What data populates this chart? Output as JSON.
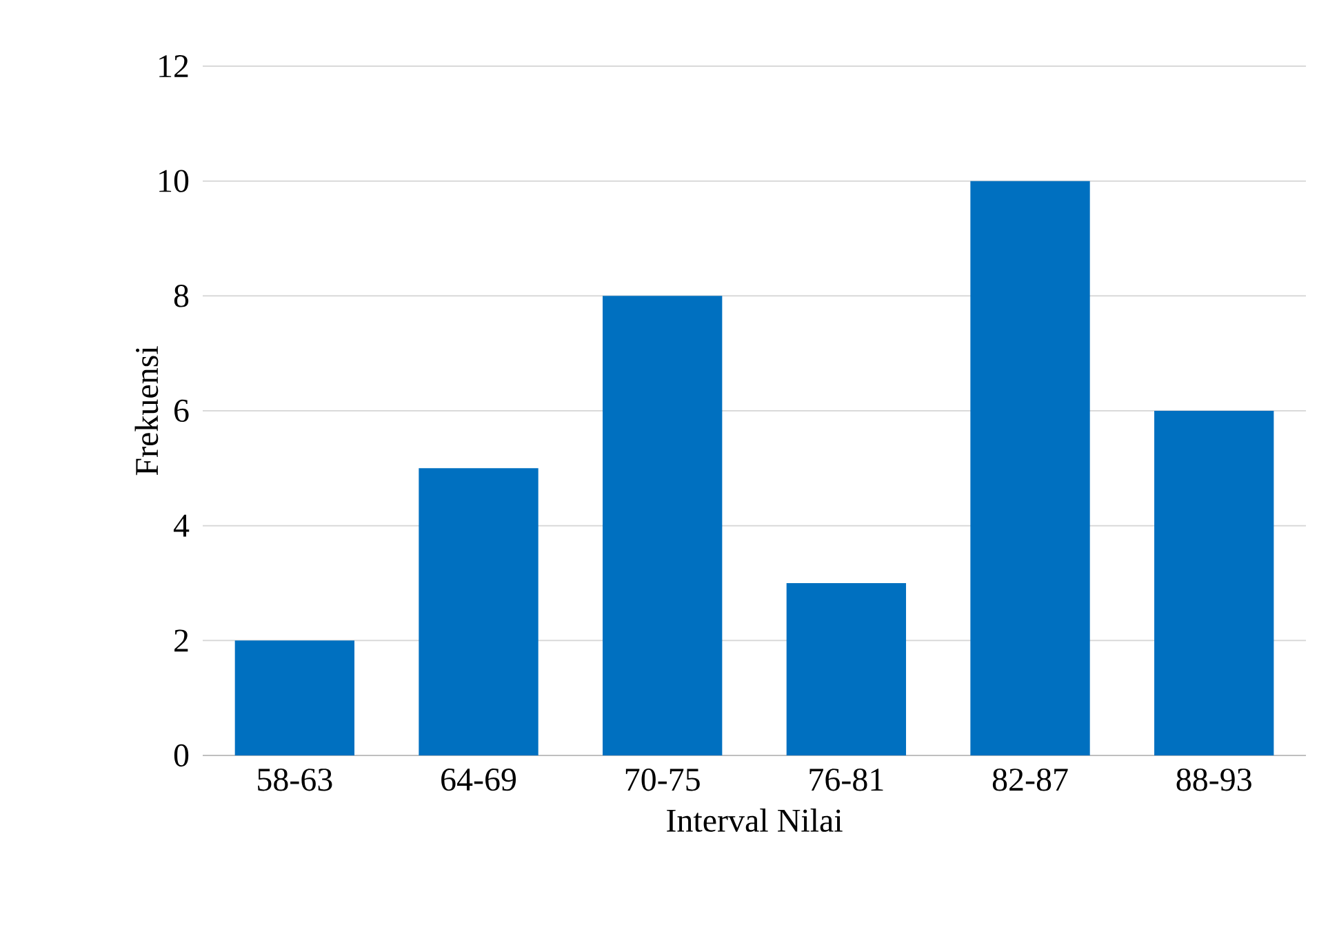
{
  "chart_data": {
    "type": "bar",
    "xlabel": "Interval Nilai",
    "ylabel": "Frekuensi",
    "categories": [
      "58-63",
      "64-69",
      "70-75",
      "76-81",
      "82-87",
      "88-93"
    ],
    "values": [
      2,
      5,
      8,
      3,
      10,
      6
    ],
    "color": "#0070c0",
    "ylim": [
      0,
      12
    ],
    "yticks": [
      0,
      2,
      4,
      6,
      8,
      10,
      12
    ],
    "grid": "y"
  }
}
